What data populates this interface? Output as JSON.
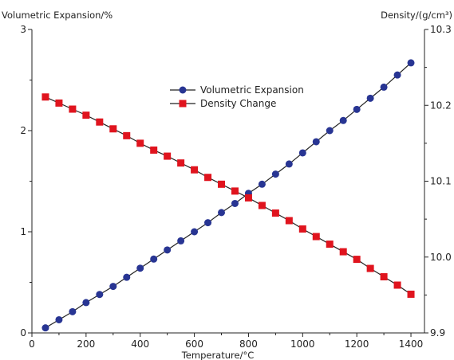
{
  "chart_data": {
    "type": "line",
    "xlabel": "Temperature/°C",
    "ylabel_left": "Volumetric Expansion/%",
    "ylabel_right": "Density/(g/cm³)",
    "xlim": [
      0,
      1450
    ],
    "ylim_left": [
      0,
      3
    ],
    "ylim_right": [
      9.9,
      10.3
    ],
    "xticks": [
      0,
      200,
      400,
      600,
      800,
      1000,
      1200,
      1400
    ],
    "yticks_left": [
      0,
      1,
      2,
      3
    ],
    "yticks_right": [
      9.9,
      10.0,
      10.1,
      10.2,
      10.3
    ],
    "xtick_labels": [
      "0",
      "200",
      "400",
      "600",
      "800",
      "1000",
      "1200",
      "1400"
    ],
    "ytick_labels_left": [
      "0",
      "1",
      "2",
      "3"
    ],
    "ytick_labels_right": [
      "9.9",
      "10.0",
      "10.1",
      "10.2",
      "10.3"
    ],
    "grid": false,
    "legend_position": "upper-center",
    "x": [
      50,
      100,
      150,
      200,
      250,
      300,
      350,
      400,
      450,
      500,
      550,
      600,
      650,
      700,
      750,
      800,
      850,
      900,
      950,
      1000,
      1050,
      1100,
      1150,
      1200,
      1250,
      1300,
      1350,
      1400
    ],
    "series": [
      {
        "name": "Volumetric Expansion",
        "axis": "left",
        "marker": "circle",
        "color": "#283593",
        "values": [
          0.05,
          0.13,
          0.21,
          0.3,
          0.38,
          0.46,
          0.55,
          0.64,
          0.73,
          0.82,
          0.91,
          1.0,
          1.09,
          1.19,
          1.28,
          1.38,
          1.47,
          1.57,
          1.67,
          1.78,
          1.89,
          2.0,
          2.1,
          2.21,
          2.32,
          2.43,
          2.55,
          2.67
        ]
      },
      {
        "name": "Density Change",
        "axis": "right",
        "marker": "square",
        "color": "#e0141e",
        "values": [
          10.211,
          10.203,
          10.195,
          10.187,
          10.178,
          10.169,
          10.16,
          10.15,
          10.141,
          10.133,
          10.124,
          10.115,
          10.105,
          10.096,
          10.087,
          10.078,
          10.068,
          10.058,
          10.048,
          10.037,
          10.027,
          10.017,
          10.007,
          9.997,
          9.985,
          9.974,
          9.963,
          9.951
        ]
      }
    ]
  }
}
